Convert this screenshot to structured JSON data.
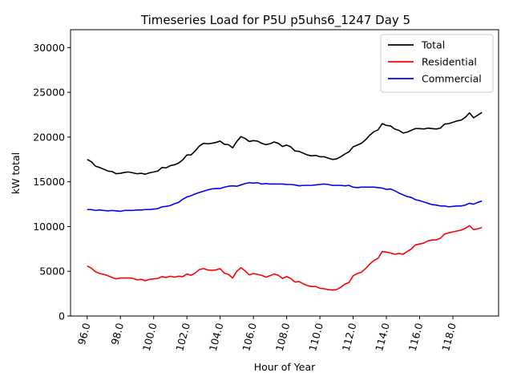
{
  "chart_data": {
    "type": "line",
    "title": "Timeseries Load for P5U p5uhs6_1247  Day 5",
    "xlabel": "Hour of Year",
    "ylabel": "kW total",
    "xlim": [
      95.0,
      120.75
    ],
    "ylim": [
      0,
      32000
    ],
    "xticks": [
      96.0,
      98.0,
      100.0,
      102.0,
      104.0,
      106.0,
      108.0,
      110.0,
      112.0,
      114.0,
      116.0,
      118.0
    ],
    "xtick_labels": [
      "96.0",
      "98.0",
      "100.0",
      "102.0",
      "104.0",
      "106.0",
      "108.0",
      "110.0",
      "112.0",
      "114.0",
      "116.0",
      "118.0"
    ],
    "yticks": [
      0,
      5000,
      10000,
      15000,
      20000,
      25000,
      30000
    ],
    "ytick_labels": [
      "0",
      "5000",
      "10000",
      "15000",
      "20000",
      "25000",
      "30000"
    ],
    "legend_position": "top-right",
    "x": [
      96.0,
      96.25,
      96.5,
      96.75,
      97.0,
      97.25,
      97.5,
      97.75,
      98.0,
      98.25,
      98.5,
      98.75,
      99.0,
      99.25,
      99.5,
      99.75,
      100.0,
      100.25,
      100.5,
      100.75,
      101.0,
      101.25,
      101.5,
      101.75,
      102.0,
      102.25,
      102.5,
      102.75,
      103.0,
      103.25,
      103.5,
      103.75,
      104.0,
      104.25,
      104.5,
      104.75,
      105.0,
      105.25,
      105.5,
      105.75,
      106.0,
      106.25,
      106.5,
      106.75,
      107.0,
      107.25,
      107.5,
      107.75,
      108.0,
      108.25,
      108.5,
      108.75,
      109.0,
      109.25,
      109.5,
      109.75,
      110.0,
      110.25,
      110.5,
      110.75,
      111.0,
      111.25,
      111.5,
      111.75,
      112.0,
      112.25,
      112.5,
      112.75,
      113.0,
      113.25,
      113.5,
      113.75,
      114.0,
      114.25,
      114.5,
      114.75,
      115.0,
      115.25,
      115.5,
      115.75,
      116.0,
      116.25,
      116.5,
      116.75,
      117.0,
      117.25,
      117.5,
      117.75,
      118.0,
      118.25,
      118.5,
      118.75,
      119.0,
      119.25,
      119.5,
      119.75
    ],
    "series": [
      {
        "name": "Total",
        "color": "#000000",
        "values": [
          17500,
          17250,
          16750,
          16600,
          16400,
          16200,
          16150,
          15900,
          15950,
          16050,
          16100,
          16000,
          15900,
          15950,
          15850,
          16000,
          16100,
          16200,
          16600,
          16550,
          16800,
          16900,
          17100,
          17450,
          18000,
          18000,
          18450,
          19000,
          19300,
          19250,
          19300,
          19400,
          19550,
          19200,
          19150,
          18800,
          19500,
          20050,
          19850,
          19500,
          19600,
          19550,
          19300,
          19150,
          19250,
          19450,
          19300,
          18950,
          19100,
          18900,
          18450,
          18400,
          18200,
          18000,
          17900,
          17950,
          17800,
          17800,
          17650,
          17500,
          17550,
          17800,
          18100,
          18350,
          18900,
          19100,
          19300,
          19700,
          20200,
          20600,
          20800,
          21500,
          21300,
          21250,
          20900,
          20750,
          20450,
          20550,
          20750,
          20950,
          20950,
          20900,
          21000,
          20950,
          20900,
          21000,
          21450,
          21500,
          21650,
          21800,
          21900,
          22200,
          22700,
          22150,
          22450,
          22750
        ]
      },
      {
        "name": "Residential",
        "color": "#ff0000",
        "values": [
          5600,
          5350,
          4950,
          4750,
          4650,
          4500,
          4300,
          4150,
          4250,
          4250,
          4250,
          4200,
          4050,
          4100,
          3950,
          4100,
          4150,
          4200,
          4400,
          4300,
          4450,
          4350,
          4450,
          4400,
          4700,
          4550,
          4800,
          5200,
          5300,
          5150,
          5100,
          5150,
          5300,
          4800,
          4650,
          4250,
          5000,
          5400,
          5050,
          4600,
          4750,
          4650,
          4550,
          4350,
          4500,
          4700,
          4550,
          4200,
          4400,
          4200,
          3800,
          3850,
          3600,
          3400,
          3300,
          3300,
          3100,
          3050,
          2950,
          2900,
          2950,
          3200,
          3550,
          3750,
          4500,
          4750,
          4900,
          5300,
          5800,
          6200,
          6450,
          7200,
          7150,
          7050,
          6900,
          7000,
          6900,
          7200,
          7500,
          7950,
          8050,
          8150,
          8400,
          8500,
          8500,
          8700,
          9150,
          9300,
          9400,
          9500,
          9600,
          9800,
          10100,
          9650,
          9750,
          9900
        ]
      },
      {
        "name": "Commercial",
        "color": "#0000ff",
        "values": [
          11900,
          11900,
          11800,
          11850,
          11800,
          11750,
          11800,
          11750,
          11700,
          11800,
          11800,
          11800,
          11850,
          11850,
          11900,
          11900,
          11950,
          12000,
          12200,
          12250,
          12350,
          12550,
          12700,
          13050,
          13300,
          13450,
          13650,
          13800,
          13950,
          14100,
          14200,
          14250,
          14250,
          14400,
          14500,
          14550,
          14500,
          14650,
          14800,
          14900,
          14850,
          14900,
          14750,
          14800,
          14750,
          14750,
          14750,
          14750,
          14700,
          14700,
          14650,
          14550,
          14600,
          14600,
          14600,
          14650,
          14700,
          14750,
          14700,
          14600,
          14600,
          14600,
          14550,
          14600,
          14400,
          14350,
          14400,
          14400,
          14400,
          14400,
          14350,
          14300,
          14150,
          14200,
          14000,
          13750,
          13550,
          13350,
          13250,
          13000,
          12900,
          12750,
          12600,
          12450,
          12400,
          12300,
          12300,
          12200,
          12250,
          12300,
          12300,
          12400,
          12600,
          12500,
          12700,
          12850
        ]
      }
    ]
  }
}
